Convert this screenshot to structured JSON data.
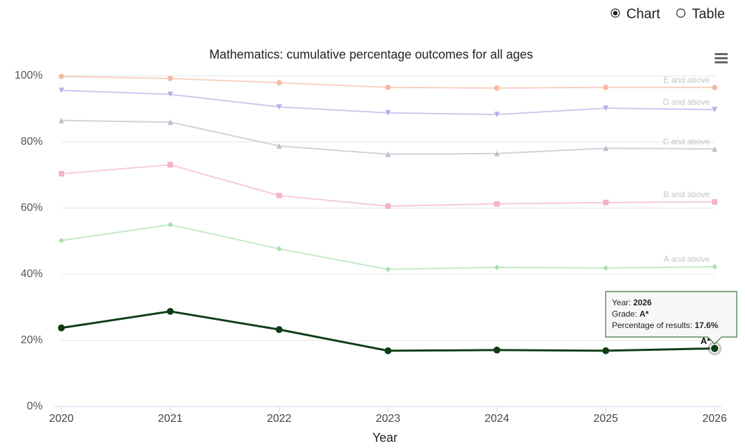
{
  "controls": {
    "options": [
      "Chart",
      "Table"
    ],
    "selected": 0
  },
  "chart_data": {
    "type": "line",
    "title": "Mathematics: cumulative percentage outcomes for all ages",
    "x_label": "Year",
    "categories": [
      "2020",
      "2021",
      "2022",
      "2023",
      "2024",
      "2025",
      "2026"
    ],
    "ylim": [
      0,
      100
    ],
    "yticks": [
      {
        "value": 0,
        "label": "0%"
      },
      {
        "value": 20,
        "label": "20%"
      },
      {
        "value": 40,
        "label": "40%"
      },
      {
        "value": 60,
        "label": "60%"
      },
      {
        "value": 80,
        "label": "80%"
      },
      {
        "value": 100,
        "label": "100%"
      }
    ],
    "grid": true,
    "series": [
      {
        "name": "E and above",
        "color": "#f6bba8",
        "marker": "circle",
        "faded": true,
        "values": [
          99.8,
          99.2,
          97.9,
          96.5,
          96.3,
          96.5,
          96.5
        ]
      },
      {
        "name": "D and above",
        "color": "#b6b0e8",
        "marker": "triangle-down",
        "faded": true,
        "values": [
          95.6,
          94.4,
          90.6,
          88.8,
          88.3,
          90.2,
          89.8
        ]
      },
      {
        "name": "C and above",
        "color": "#bcc0cc",
        "marker": "triangle",
        "faded": true,
        "values": [
          86.5,
          86.0,
          78.8,
          76.3,
          76.5,
          78.1,
          77.9
        ]
      },
      {
        "name": "B and above",
        "color": "#f4b4c4",
        "marker": "square",
        "faded": true,
        "values": [
          70.4,
          73.1,
          63.8,
          60.6,
          61.3,
          61.7,
          61.9
        ]
      },
      {
        "name": "A and above",
        "color": "#aadfac",
        "marker": "diamond",
        "faded": true,
        "values": [
          50.2,
          55.0,
          47.7,
          41.5,
          42.1,
          41.9,
          42.3
        ]
      },
      {
        "name": "A*",
        "color": "#0f3d14",
        "marker": "circle",
        "faded": false,
        "values": [
          23.8,
          28.8,
          23.3,
          16.9,
          17.1,
          16.9,
          17.6
        ]
      }
    ],
    "tooltip": {
      "lines": [
        {
          "label": "Year:",
          "value": "2026"
        },
        {
          "label": "Grade:",
          "value": "A*"
        },
        {
          "label": "Percentage of results:",
          "value": "17.6%"
        }
      ]
    }
  }
}
